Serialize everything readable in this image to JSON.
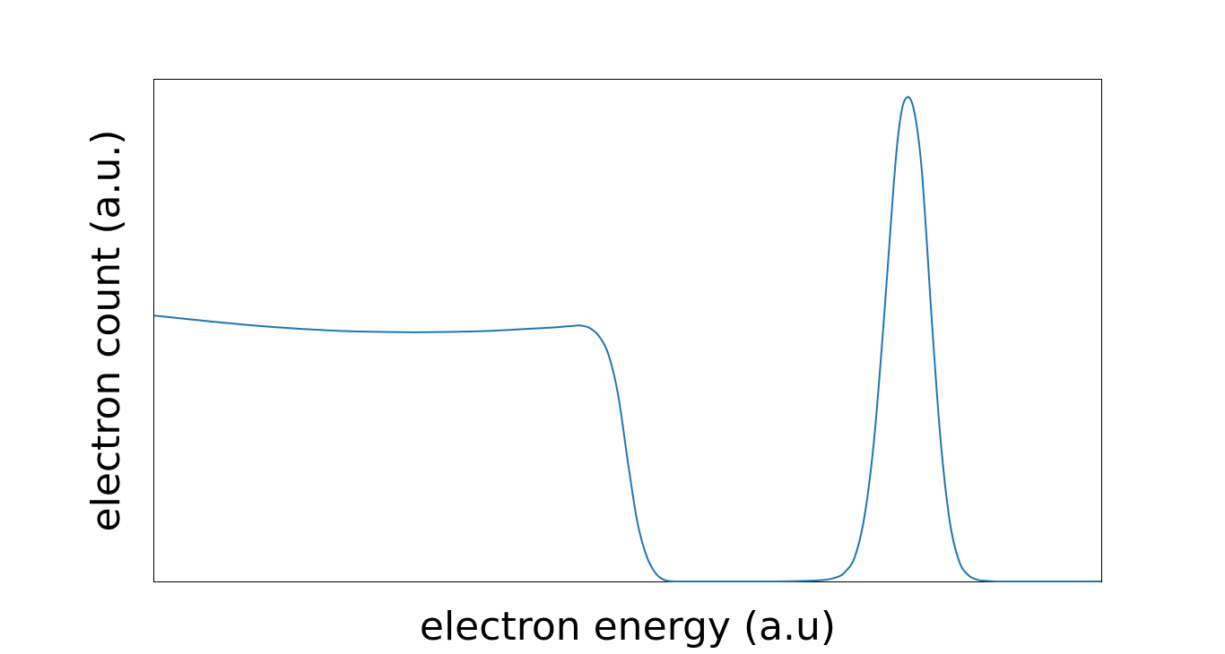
{
  "chart_data": {
    "type": "line",
    "title": "",
    "xlabel": "electron energy (a.u)",
    "ylabel": "electron count (a.u.)",
    "xlim": [
      0,
      1
    ],
    "ylim": [
      0,
      1
    ],
    "grid": false,
    "legend": "none",
    "ticks_visible": false,
    "series": [
      {
        "color": "#1f77b4",
        "x": [
          0.0,
          0.05,
          0.1,
          0.15,
          0.2,
          0.25,
          0.3,
          0.35,
          0.4,
          0.42,
          0.44,
          0.45,
          0.46,
          0.47,
          0.48,
          0.49,
          0.5,
          0.51,
          0.52,
          0.53,
          0.54,
          0.55,
          0.56,
          0.58,
          0.6,
          0.65,
          0.7,
          0.72,
          0.73,
          0.74,
          0.75,
          0.76,
          0.77,
          0.78,
          0.785,
          0.79,
          0.795,
          0.8,
          0.805,
          0.81,
          0.815,
          0.82,
          0.83,
          0.84,
          0.85,
          0.86,
          0.87,
          0.88,
          0.89,
          0.9,
          0.92,
          0.95,
          1.0
        ],
        "y": [
          0.53,
          0.52,
          0.511,
          0.504,
          0.499,
          0.497,
          0.497,
          0.499,
          0.504,
          0.506,
          0.509,
          0.51,
          0.505,
          0.488,
          0.45,
          0.37,
          0.24,
          0.12,
          0.05,
          0.015,
          0.002,
          0.0,
          0.0,
          0.0,
          0.0,
          0.0,
          0.002,
          0.008,
          0.02,
          0.05,
          0.13,
          0.28,
          0.51,
          0.77,
          0.88,
          0.945,
          0.965,
          0.955,
          0.91,
          0.83,
          0.7,
          0.55,
          0.29,
          0.12,
          0.04,
          0.012,
          0.003,
          0.001,
          0.0,
          0.0,
          0.0,
          0.0,
          0.0
        ]
      }
    ]
  }
}
